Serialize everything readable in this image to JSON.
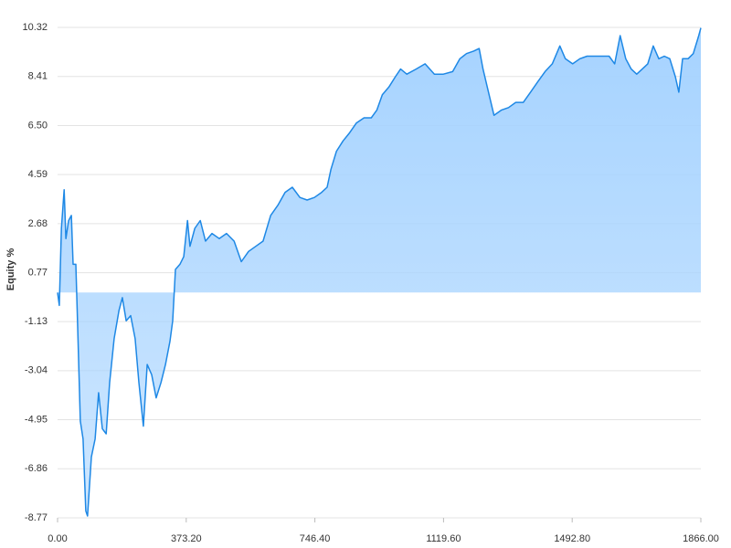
{
  "chart_data": {
    "type": "area",
    "y_label": "Equity %",
    "color": "#1e88e5",
    "fill_color": "#a6d3ff",
    "grid": true,
    "xlim": [
      0,
      1866
    ],
    "ylim": [
      -8.77,
      10.32
    ],
    "xticks": [
      {
        "value": 0,
        "label": "0.00"
      },
      {
        "value": 373.2,
        "label": "373.20"
      },
      {
        "value": 746.4,
        "label": "746.40"
      },
      {
        "value": 1119.6,
        "label": "1119.60"
      },
      {
        "value": 1492.8,
        "label": "1492.80"
      },
      {
        "value": 1866,
        "label": "1866.00"
      }
    ],
    "yticks": [
      10.32,
      8.41,
      {
        "value": 6.5,
        "label": "6.50"
      },
      4.59,
      2.68,
      0.77,
      -1.13,
      -3.04,
      -4.95,
      -6.86,
      -8.77
    ],
    "x": [
      0,
      5,
      11,
      19,
      24,
      32,
      40,
      45,
      53,
      58,
      66,
      74,
      82,
      87,
      98,
      109,
      119,
      130,
      141,
      151,
      164,
      178,
      188,
      199,
      212,
      225,
      236,
      249,
      260,
      273,
      286,
      300,
      313,
      326,
      334,
      342,
      355,
      366,
      377,
      384,
      398,
      414,
      429,
      448,
      469,
      490,
      512,
      533,
      554,
      575,
      596,
      618,
      639,
      660,
      681,
      703,
      724,
      745,
      766,
      782,
      793,
      809,
      828,
      846,
      867,
      889,
      910,
      926,
      942,
      961,
      980,
      995,
      1013,
      1040,
      1066,
      1093,
      1119,
      1146,
      1167,
      1186,
      1207,
      1223,
      1234,
      1250,
      1266,
      1287,
      1308,
      1329,
      1351,
      1372,
      1393,
      1414,
      1435,
      1457,
      1473,
      1494,
      1515,
      1536,
      1558,
      1579,
      1600,
      1616,
      1632,
      1648,
      1664,
      1680,
      1696,
      1712,
      1728,
      1744,
      1760,
      1776,
      1792,
      1802,
      1813,
      1829,
      1844,
      1860,
      1866
    ],
    "values": [
      0,
      -0.5,
      2.5,
      4.0,
      2.1,
      2.8,
      3.0,
      1.1,
      1.1,
      -1.2,
      -5.0,
      -5.7,
      -8.5,
      -8.7,
      -6.4,
      -5.7,
      -3.9,
      -5.3,
      -5.5,
      -3.5,
      -1.8,
      -0.7,
      -0.2,
      -1.1,
      -0.9,
      -1.8,
      -3.5,
      -5.2,
      -2.8,
      -3.2,
      -4.1,
      -3.5,
      -2.8,
      -1.9,
      -1.1,
      0.9,
      1.1,
      1.4,
      2.8,
      1.8,
      2.5,
      2.8,
      2.0,
      2.3,
      2.1,
      2.3,
      2.0,
      1.2,
      1.6,
      1.8,
      2.0,
      3.0,
      3.4,
      3.9,
      4.1,
      3.7,
      3.6,
      3.7,
      3.9,
      4.1,
      4.8,
      5.5,
      5.9,
      6.2,
      6.6,
      6.8,
      6.8,
      7.1,
      7.7,
      8.0,
      8.4,
      8.7,
      8.5,
      8.7,
      8.9,
      8.5,
      8.5,
      8.6,
      9.1,
      9.3,
      9.4,
      9.5,
      8.7,
      7.8,
      6.9,
      7.1,
      7.2,
      7.4,
      7.4,
      7.8,
      8.2,
      8.6,
      8.9,
      9.6,
      9.1,
      8.9,
      9.1,
      9.2,
      9.2,
      9.2,
      9.2,
      8.9,
      10.0,
      9.1,
      8.7,
      8.5,
      8.7,
      8.9,
      9.6,
      9.1,
      9.2,
      9.1,
      8.4,
      7.8,
      9.1,
      9.1,
      9.3,
      10.0,
      10.3
    ]
  }
}
